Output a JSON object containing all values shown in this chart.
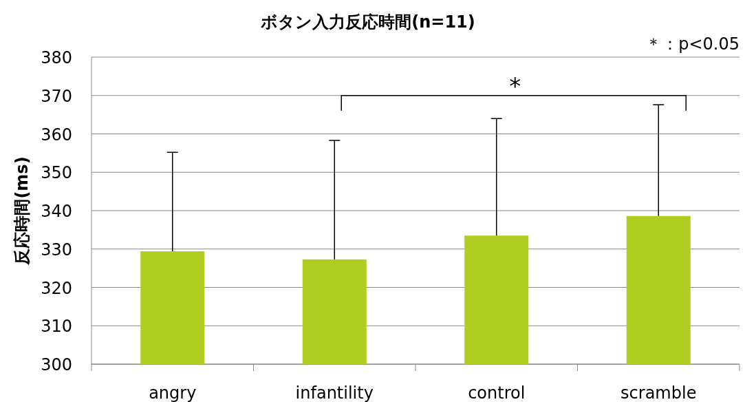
{
  "chart_data": {
    "type": "bar",
    "title": "ボタン入力反応時間(n=11)",
    "ylabel": "反応時間(ms)",
    "categories": [
      "angry",
      "infantility",
      "control",
      "scramble"
    ],
    "series": [
      {
        "color": "#b0cd22",
        "values": [
          329.4,
          327.3,
          333.5,
          338.6
        ],
        "errors": [
          [
            329.4,
            355.2
          ],
          [
            327.3,
            358.3
          ],
          [
            333.5,
            364.0
          ],
          [
            338.6,
            367.6
          ]
        ]
      }
    ],
    "ylim": [
      300,
      380
    ],
    "yticks": [
      300,
      310,
      320,
      330,
      340,
      350,
      360,
      370,
      380
    ],
    "grid": "y",
    "annotations": [
      "*",
      "＊：p<0.05"
    ]
  }
}
